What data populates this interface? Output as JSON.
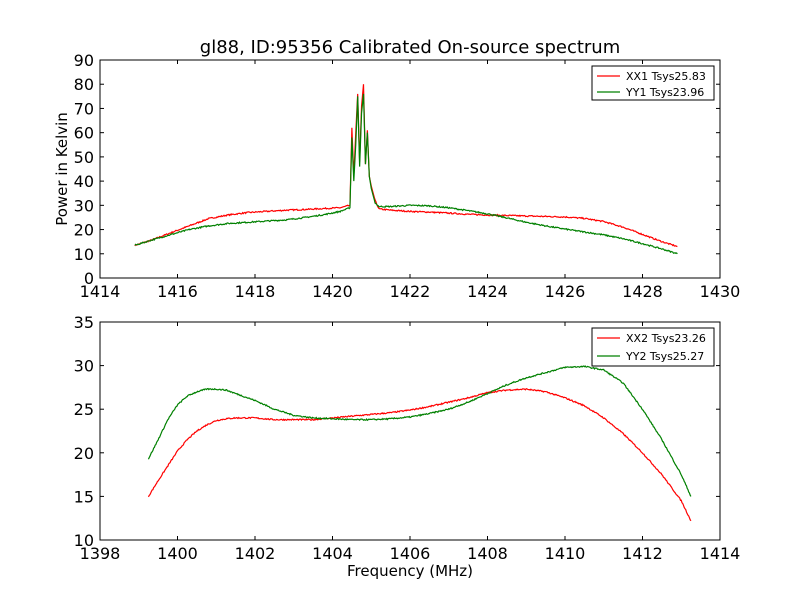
{
  "figure": {
    "title": "gl88, ID:95356 Calibrated On-source spectrum",
    "ylabel": "Power in Kelvin",
    "xlabel": "Frequency (MHz)"
  },
  "chart_data": [
    {
      "type": "line",
      "title": "gl88, ID:95356 Calibrated On-source spectrum",
      "xlabel": "",
      "ylabel": "Power in Kelvin",
      "xlim": [
        1414,
        1430
      ],
      "ylim": [
        0,
        90
      ],
      "xticks": [
        1414,
        1416,
        1418,
        1420,
        1422,
        1424,
        1426,
        1428,
        1430
      ],
      "yticks": [
        0,
        10,
        20,
        30,
        40,
        50,
        60,
        70,
        80,
        90
      ],
      "legend_position": "top-right",
      "series": [
        {
          "name": "XX1 Tsys25.83",
          "color": "#ff0000",
          "x": [
            1414.9,
            1415.3,
            1415.8,
            1416.3,
            1416.8,
            1417.3,
            1417.8,
            1418.3,
            1418.8,
            1419.3,
            1419.8,
            1420.2,
            1420.45,
            1420.5,
            1420.55,
            1420.6,
            1420.65,
            1420.7,
            1420.75,
            1420.8,
            1420.85,
            1420.9,
            1420.95,
            1421.0,
            1421.1,
            1421.2,
            1421.5,
            1422.0,
            1422.5,
            1423.0,
            1423.5,
            1424.0,
            1424.5,
            1425.0,
            1425.5,
            1426.0,
            1426.5,
            1427.0,
            1427.5,
            1428.0,
            1428.5,
            1428.9
          ],
          "values": [
            13.5,
            15.5,
            18.5,
            21.5,
            24.5,
            26.0,
            27.0,
            27.5,
            28.0,
            28.3,
            28.7,
            29.0,
            30.0,
            62.0,
            42.0,
            60.0,
            76.0,
            48.0,
            71.0,
            80.0,
            47.0,
            61.0,
            42.0,
            38.0,
            32.0,
            28.5,
            28.0,
            27.5,
            27.2,
            26.8,
            26.3,
            26.0,
            25.8,
            25.6,
            25.4,
            25.2,
            24.6,
            23.3,
            21.0,
            18.0,
            15.0,
            13.0
          ]
        },
        {
          "name": "YY1 Tsys23.96",
          "color": "#008000",
          "x": [
            1414.9,
            1415.3,
            1415.8,
            1416.3,
            1416.8,
            1417.3,
            1417.8,
            1418.3,
            1418.8,
            1419.3,
            1419.8,
            1420.2,
            1420.45,
            1420.5,
            1420.55,
            1420.6,
            1420.65,
            1420.7,
            1420.75,
            1420.8,
            1420.85,
            1420.9,
            1420.95,
            1421.0,
            1421.1,
            1421.2,
            1421.5,
            1422.0,
            1422.5,
            1423.0,
            1423.5,
            1424.0,
            1424.5,
            1425.0,
            1425.5,
            1426.0,
            1426.5,
            1427.0,
            1427.5,
            1428.0,
            1428.5,
            1428.9
          ],
          "values": [
            13.5,
            15.5,
            17.8,
            20.0,
            21.5,
            22.5,
            23.0,
            23.5,
            24.0,
            25.0,
            26.2,
            27.5,
            29.0,
            58.0,
            40.0,
            55.0,
            75.0,
            46.0,
            68.0,
            76.0,
            47.0,
            60.0,
            42.0,
            37.0,
            31.0,
            29.5,
            29.5,
            30.0,
            29.8,
            29.0,
            27.8,
            26.5,
            24.8,
            23.0,
            21.5,
            20.2,
            19.0,
            17.8,
            16.2,
            14.2,
            12.0,
            10.0
          ]
        }
      ]
    },
    {
      "type": "line",
      "title": "",
      "xlabel": "Frequency (MHz)",
      "ylabel": "",
      "xlim": [
        1398,
        1414
      ],
      "ylim": [
        10,
        35
      ],
      "xticks": [
        1398,
        1400,
        1402,
        1404,
        1406,
        1408,
        1410,
        1412,
        1414
      ],
      "yticks": [
        10,
        15,
        20,
        25,
        30,
        35
      ],
      "legend_position": "top-right",
      "series": [
        {
          "name": "XX2 Tsys23.26",
          "color": "#ff0000",
          "x": [
            1399.25,
            1399.5,
            1399.75,
            1400.0,
            1400.25,
            1400.5,
            1400.75,
            1401.0,
            1401.25,
            1401.5,
            1402.0,
            1402.5,
            1403.0,
            1403.5,
            1404.0,
            1404.5,
            1405.0,
            1405.5,
            1406.0,
            1406.5,
            1407.0,
            1407.5,
            1408.0,
            1408.5,
            1409.0,
            1409.5,
            1410.0,
            1410.5,
            1411.0,
            1411.5,
            1412.0,
            1412.5,
            1413.0,
            1413.25
          ],
          "values": [
            15.0,
            16.8,
            18.5,
            20.2,
            21.5,
            22.5,
            23.2,
            23.7,
            23.9,
            24.0,
            24.0,
            23.8,
            23.8,
            23.8,
            24.0,
            24.2,
            24.4,
            24.6,
            24.9,
            25.3,
            25.8,
            26.3,
            26.9,
            27.2,
            27.3,
            27.0,
            26.3,
            25.4,
            24.0,
            22.2,
            20.0,
            17.5,
            14.5,
            12.2
          ]
        },
        {
          "name": "YY2 Tsys25.27",
          "color": "#008000",
          "x": [
            1399.25,
            1399.5,
            1399.75,
            1400.0,
            1400.25,
            1400.5,
            1400.75,
            1401.0,
            1401.25,
            1401.5,
            1402.0,
            1402.5,
            1403.0,
            1403.5,
            1404.0,
            1404.5,
            1405.0,
            1405.5,
            1406.0,
            1406.5,
            1407.0,
            1407.5,
            1408.0,
            1408.5,
            1409.0,
            1409.5,
            1410.0,
            1410.5,
            1411.0,
            1411.5,
            1412.0,
            1412.5,
            1413.0,
            1413.25
          ],
          "values": [
            19.3,
            21.5,
            23.8,
            25.5,
            26.5,
            27.0,
            27.3,
            27.3,
            27.2,
            26.8,
            26.0,
            25.0,
            24.3,
            24.0,
            23.9,
            23.8,
            23.8,
            23.9,
            24.1,
            24.5,
            25.0,
            25.8,
            26.8,
            27.8,
            28.6,
            29.2,
            29.8,
            29.9,
            29.5,
            28.0,
            25.0,
            21.5,
            17.5,
            15.0
          ]
        }
      ]
    }
  ]
}
